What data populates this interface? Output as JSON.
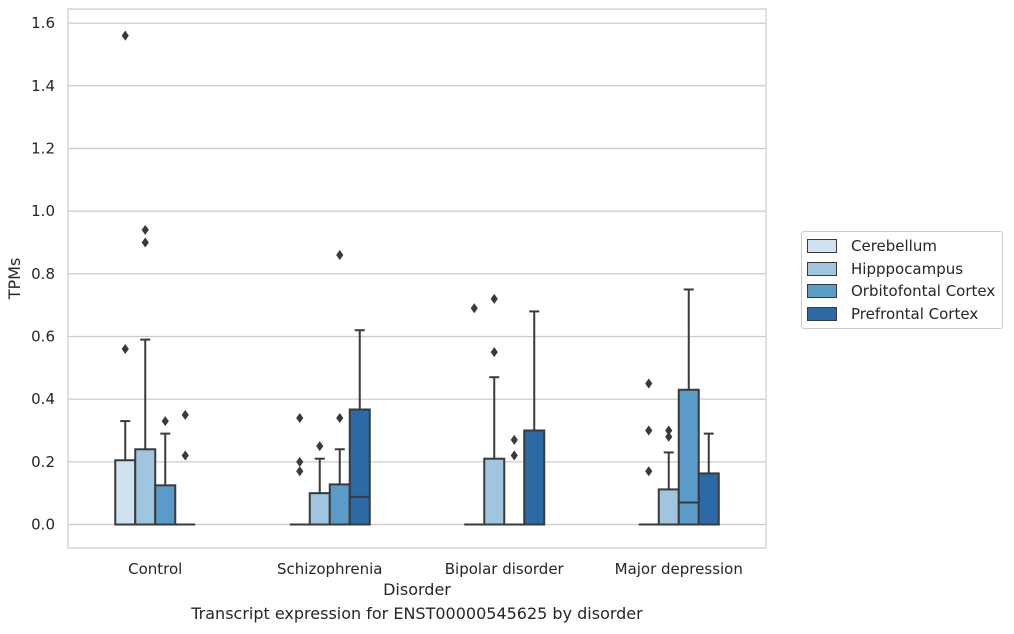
{
  "chart_data": {
    "type": "box",
    "xlabel": "Disorder",
    "ylabel": "TPMs",
    "caption": "Transcript expression for ENST00000545625 by disorder",
    "ylim": [
      -0.075,
      1.645
    ],
    "yticks": [
      0.0,
      0.2,
      0.4,
      0.6,
      0.8,
      1.0,
      1.2,
      1.4,
      1.6
    ],
    "ytick_labels": [
      "0.0",
      "0.2",
      "0.4",
      "0.6",
      "0.8",
      "1.0",
      "1.2",
      "1.4",
      "1.6"
    ],
    "grid": "horizontal",
    "legend_placement": "right-center, outside plot",
    "categories": [
      "Control",
      "Schizophrenia",
      "Bipolar disorder",
      "Major depression"
    ],
    "series": [
      {
        "name": "Cerebellum",
        "color": "#d0e1f0",
        "boxes": [
          {
            "q1": 0.0,
            "median": 0.0,
            "q3": 0.205,
            "whisker_low": 0.0,
            "whisker_high": 0.33,
            "outliers": [
              0.56,
              1.56
            ]
          },
          {
            "q1": 0.0,
            "median": 0.0,
            "q3": 0.0,
            "whisker_low": 0.0,
            "whisker_high": 0.0,
            "outliers": [
              0.17,
              0.2,
              0.34
            ]
          },
          {
            "q1": 0.0,
            "median": 0.0,
            "q3": 0.0,
            "whisker_low": 0.0,
            "whisker_high": 0.0,
            "outliers": [
              0.69
            ]
          },
          {
            "q1": 0.0,
            "median": 0.0,
            "q3": 0.0,
            "whisker_low": 0.0,
            "whisker_high": 0.0,
            "outliers": [
              0.17,
              0.3,
              0.45
            ]
          }
        ]
      },
      {
        "name": "Hipppocampus",
        "color": "#9fc6de",
        "boxes": [
          {
            "q1": 0.0,
            "median": 0.0,
            "q3": 0.24,
            "whisker_low": 0.0,
            "whisker_high": 0.59,
            "outliers": [
              0.9,
              0.94
            ]
          },
          {
            "q1": 0.0,
            "median": 0.0,
            "q3": 0.1,
            "whisker_low": 0.0,
            "whisker_high": 0.21,
            "outliers": [
              0.25
            ]
          },
          {
            "q1": 0.0,
            "median": 0.0,
            "q3": 0.21,
            "whisker_low": 0.0,
            "whisker_high": 0.47,
            "outliers": [
              0.55,
              0.72
            ]
          },
          {
            "q1": 0.0,
            "median": 0.0,
            "q3": 0.112,
            "whisker_low": 0.0,
            "whisker_high": 0.23,
            "outliers": [
              0.28,
              0.3
            ]
          }
        ]
      },
      {
        "name": "Orbitofontal Cortex",
        "color": "#5b9bc9",
        "boxes": [
          {
            "q1": 0.0,
            "median": 0.0,
            "q3": 0.125,
            "whisker_low": 0.0,
            "whisker_high": 0.29,
            "outliers": [
              0.33
            ]
          },
          {
            "q1": 0.0,
            "median": 0.0,
            "q3": 0.128,
            "whisker_low": 0.0,
            "whisker_high": 0.24,
            "outliers": [
              0.34,
              0.86
            ]
          },
          {
            "q1": 0.0,
            "median": 0.0,
            "q3": 0.0,
            "whisker_low": 0.0,
            "whisker_high": 0.0,
            "outliers": [
              0.22,
              0.27
            ]
          },
          {
            "q1": 0.0,
            "median": 0.07,
            "q3": 0.43,
            "whisker_low": 0.0,
            "whisker_high": 0.75,
            "outliers": []
          }
        ]
      },
      {
        "name": "Prefrontal Cortex",
        "color": "#2b6aa6",
        "boxes": [
          {
            "q1": 0.0,
            "median": 0.0,
            "q3": 0.0,
            "whisker_low": 0.0,
            "whisker_high": 0.0,
            "outliers": [
              0.22,
              0.35
            ]
          },
          {
            "q1": 0.0,
            "median": 0.088,
            "q3": 0.367,
            "whisker_low": 0.0,
            "whisker_high": 0.62,
            "outliers": []
          },
          {
            "q1": 0.0,
            "median": 0.0,
            "q3": 0.3,
            "whisker_low": 0.0,
            "whisker_high": 0.68,
            "outliers": []
          },
          {
            "q1": 0.0,
            "median": 0.0,
            "q3": 0.163,
            "whisker_low": 0.0,
            "whisker_high": 0.29,
            "outliers": []
          }
        ]
      }
    ]
  }
}
